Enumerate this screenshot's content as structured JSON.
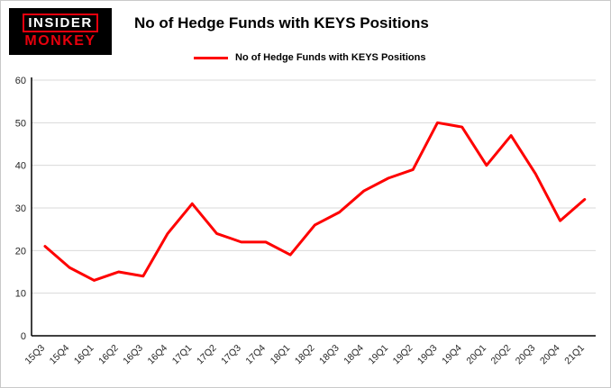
{
  "logo": {
    "line1": "INSIDER",
    "line2": "MONKEY"
  },
  "header": {
    "title": "No of Hedge Funds with KEYS Positions"
  },
  "legend": {
    "label": "No of Hedge Funds with KEYS Positions",
    "color": "#fe0000"
  },
  "chart_data": {
    "type": "line",
    "title": "No of Hedge Funds with KEYS Positions",
    "xlabel": "",
    "ylabel": "",
    "categories": [
      "15Q3",
      "15Q4",
      "16Q1",
      "16Q2",
      "16Q3",
      "16Q4",
      "17Q1",
      "17Q2",
      "17Q3",
      "17Q4",
      "18Q1",
      "18Q2",
      "18Q3",
      "18Q4",
      "19Q1",
      "19Q2",
      "19Q3",
      "19Q4",
      "20Q1",
      "20Q2",
      "20Q3",
      "20Q4",
      "21Q1"
    ],
    "series": [
      {
        "name": "No of Hedge Funds with KEYS Positions",
        "color": "#fe0000",
        "values": [
          21,
          16,
          13,
          15,
          14,
          24,
          31,
          24,
          22,
          22,
          19,
          26,
          29,
          34,
          37,
          39,
          50,
          49,
          40,
          47,
          38,
          27,
          32
        ]
      }
    ],
    "ylim": [
      0,
      60
    ],
    "yticks": [
      0,
      10,
      20,
      30,
      40,
      50,
      60
    ],
    "grid": true,
    "grid_color": "#d9d9d9",
    "axis_color": "#000000",
    "tick_label_color": "#262626",
    "legend_position": "top"
  }
}
